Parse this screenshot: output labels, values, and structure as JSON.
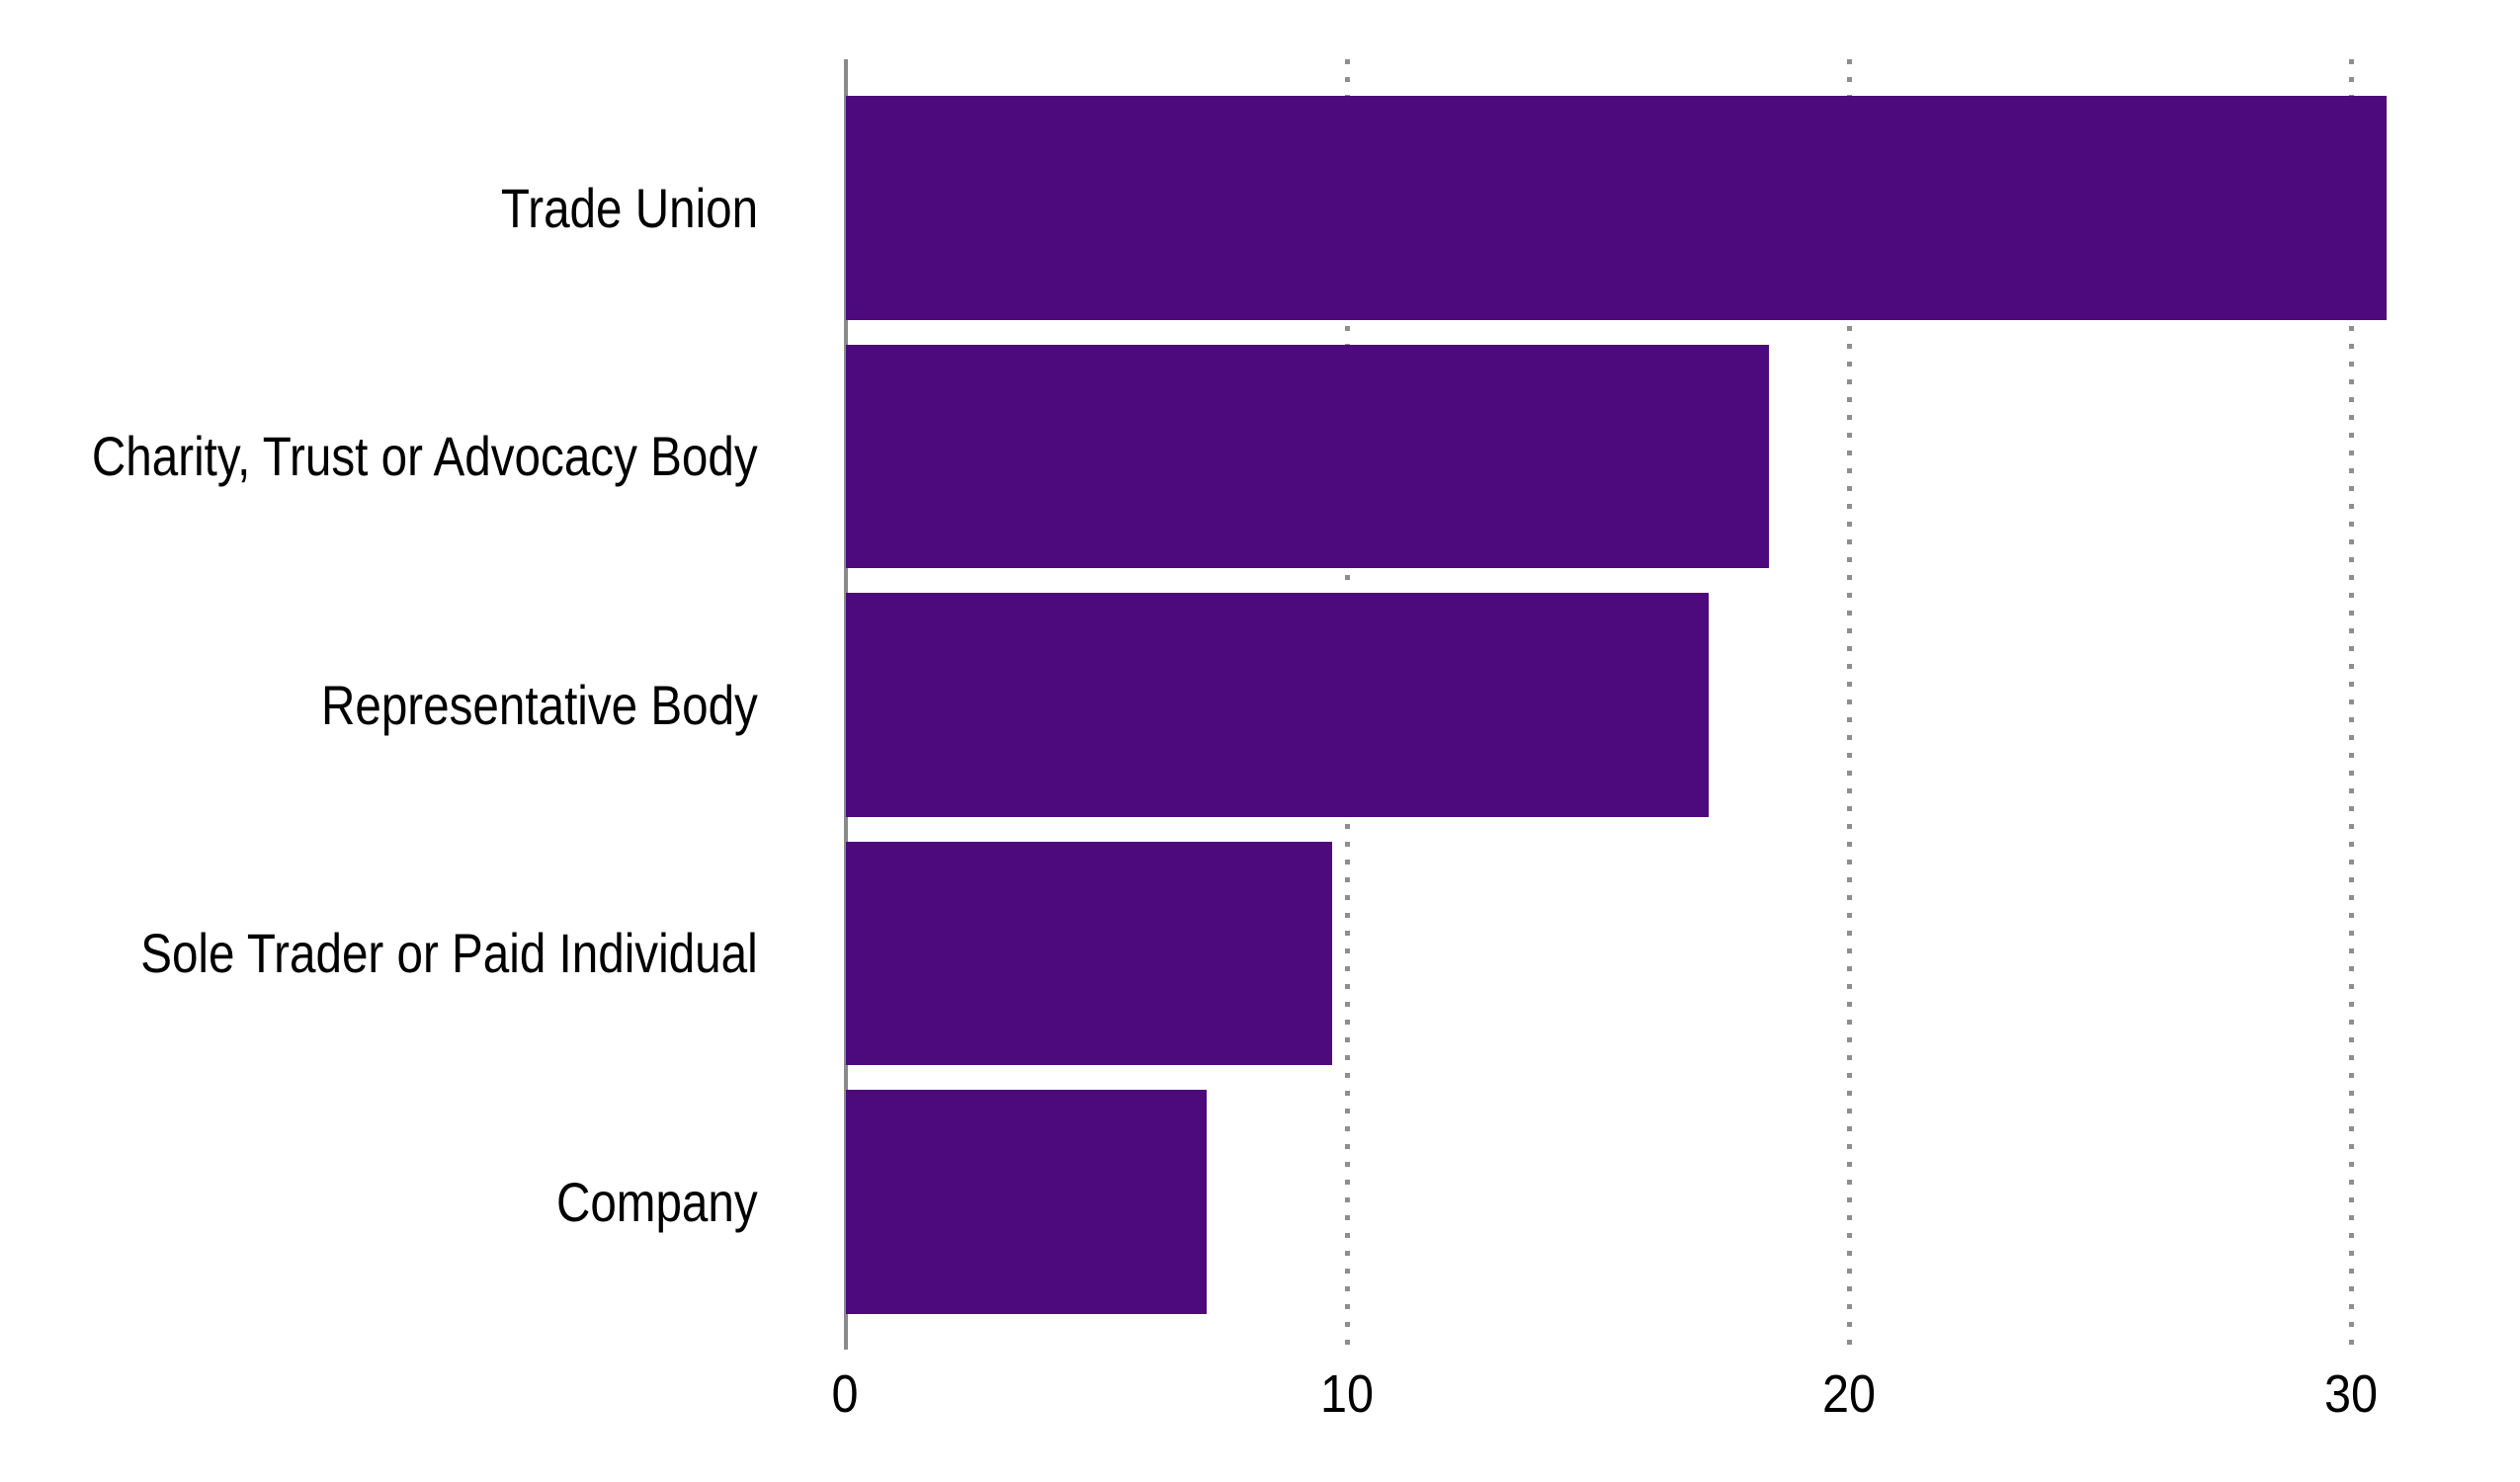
{
  "chart_data": {
    "type": "bar",
    "orientation": "horizontal",
    "title": "",
    "xlabel": "",
    "ylabel": "",
    "categories": [
      "Trade Union",
      "Charity, Trust or Advocacy Body",
      "Representative Body",
      "Sole Trader or Paid Individual",
      "Company"
    ],
    "values": [
      30.7,
      18.4,
      17.2,
      9.7,
      7.2
    ],
    "x_ticks": [
      0,
      10,
      20,
      30
    ],
    "xlim": [
      0,
      33.4
    ],
    "grid": "vertical dotted gridlines at 10, 20, 30",
    "legend": "none",
    "colors": {
      "bar": "#4d0a7d",
      "axis_line": "#8a8a8a",
      "gridline": "#8e8e8e",
      "text": "#000000",
      "background": "#ffffff"
    }
  }
}
